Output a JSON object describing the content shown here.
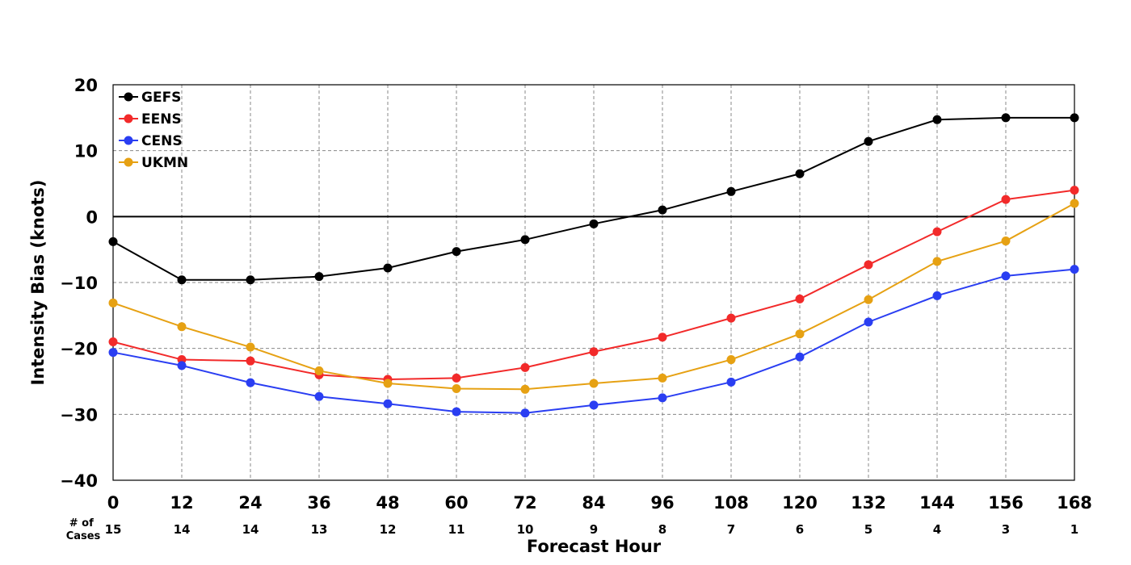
{
  "chart_data": {
    "type": "line",
    "title": "",
    "xlabel": "Forecast Hour",
    "ylabel": "Intensity Bias (knots)",
    "x": [
      0,
      12,
      24,
      36,
      48,
      60,
      72,
      84,
      96,
      108,
      120,
      132,
      144,
      156,
      168
    ],
    "xlim": [
      0,
      168
    ],
    "ylim": [
      -40,
      20
    ],
    "yticks": [
      -40,
      -30,
      -20,
      -10,
      0,
      10,
      20
    ],
    "ytick_labels": [
      "−40",
      "−30",
      "−20",
      "−10",
      "0",
      "10",
      "20"
    ],
    "grid": true,
    "zero_line": true,
    "legend_position": "upper-left",
    "cases_label": "# of Cases",
    "cases_label_lines": [
      "# of",
      "Cases"
    ],
    "cases": [
      15,
      14,
      14,
      13,
      12,
      11,
      10,
      9,
      8,
      7,
      6,
      5,
      4,
      3,
      1
    ],
    "series": [
      {
        "name": "GEFS",
        "color": "#000000",
        "values": [
          -3.8,
          -9.6,
          -9.6,
          -9.1,
          -7.8,
          -5.3,
          -3.5,
          -1.1,
          1.0,
          3.8,
          6.5,
          11.4,
          14.7,
          15.0,
          15.0
        ]
      },
      {
        "name": "EENS",
        "color": "#f22a2a",
        "values": [
          -19.0,
          -21.7,
          -21.9,
          -24.0,
          -24.7,
          -24.5,
          -22.9,
          -20.5,
          -18.3,
          -15.4,
          -12.5,
          -7.3,
          -2.3,
          2.6,
          4.0
        ]
      },
      {
        "name": "CENS",
        "color": "#2a3ef2",
        "values": [
          -20.6,
          -22.6,
          -25.2,
          -27.3,
          -28.4,
          -29.6,
          -29.8,
          -28.6,
          -27.5,
          -25.1,
          -21.3,
          -16.0,
          -12.0,
          -9.0,
          -8.0
        ]
      },
      {
        "name": "UKMN",
        "color": "#e6a113",
        "values": [
          -13.1,
          -16.7,
          -19.8,
          -23.4,
          -25.3,
          -26.1,
          -26.2,
          -25.3,
          -24.5,
          -21.7,
          -17.8,
          -12.6,
          -6.8,
          -3.7,
          2.0
        ]
      }
    ]
  }
}
